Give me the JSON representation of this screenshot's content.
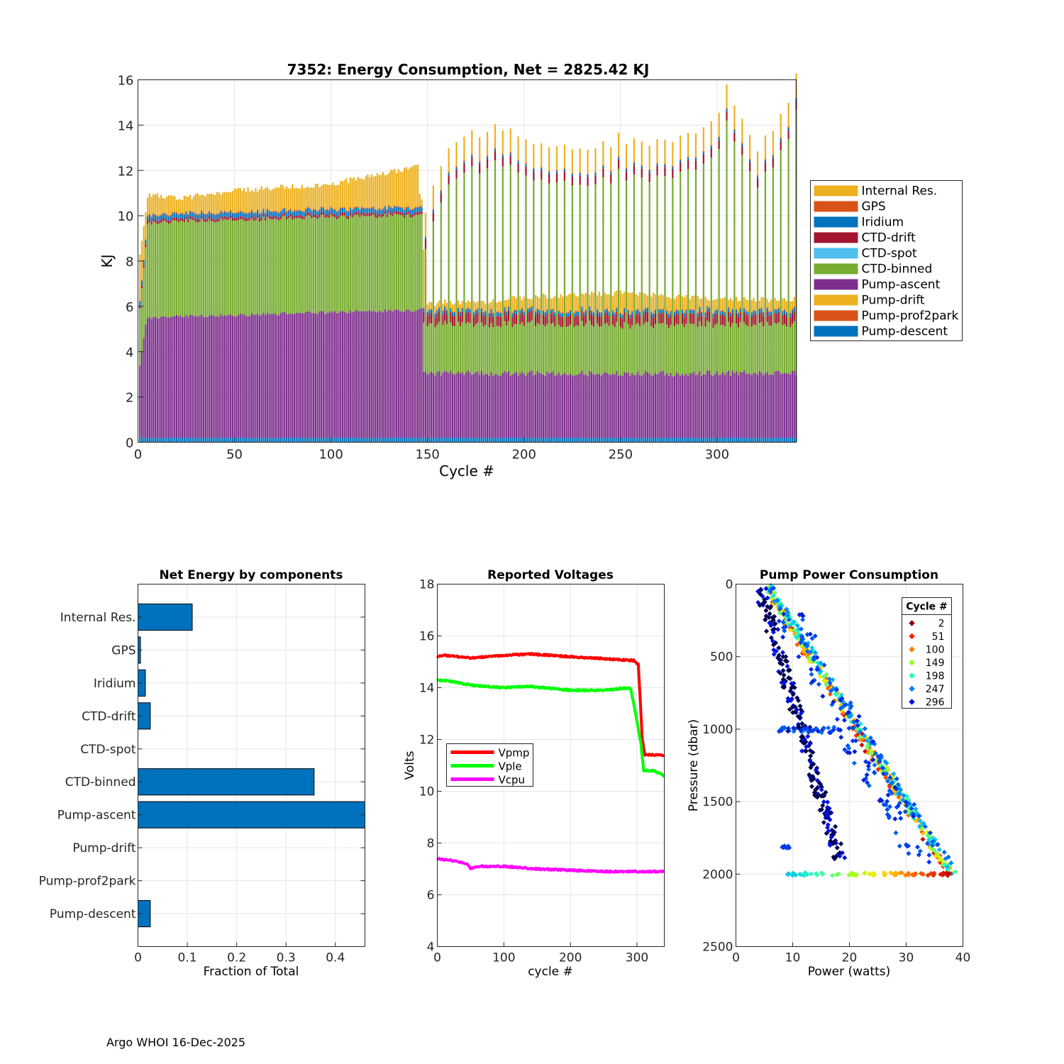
{
  "footer": "Argo WHOI 16-Dec-2025",
  "chart_data": [
    {
      "type": "bar",
      "stacked": true,
      "title": "7352: Energy Consumption,  Net = 2825.42 KJ",
      "xlabel": "Cycle #",
      "ylabel": "KJ",
      "xlim": [
        0,
        341
      ],
      "ylim": [
        0,
        16
      ],
      "xticks": [
        0,
        50,
        100,
        150,
        200,
        250,
        300
      ],
      "yticks": [
        0,
        2,
        4,
        6,
        8,
        10,
        12,
        14,
        16
      ],
      "legend_position": "right",
      "legend": [
        "Internal Res.",
        "GPS",
        "Iridium",
        "CTD-drift",
        "CTD-spot",
        "CTD-binned",
        "Pump-ascent",
        "Pump-drift",
        "Pump-prof2park",
        "Pump-descent"
      ],
      "colors": {
        "Internal Res.": "#EDB120",
        "GPS": "#D95319",
        "Iridium": "#0072BD",
        "CTD-drift": "#A2142F",
        "CTD-spot": "#4DBEEE",
        "CTD-binned": "#77AC30",
        "Pump-ascent": "#7E2F8E",
        "Pump-drift": "#EDB120",
        "Pump-prof2park": "#D95319",
        "Pump-descent": "#0072BD"
      },
      "approx_totals": [
        {
          "cycle": 1,
          "total": 8.3
        },
        {
          "cycle": 5,
          "total": 10.9
        },
        {
          "cycle": 25,
          "total": 10.8
        },
        {
          "cycle": 50,
          "total": 11.1
        },
        {
          "cycle": 100,
          "total": 11.4
        },
        {
          "cycle": 145,
          "total": 12.2
        },
        {
          "cycle": 150,
          "total": 5.9
        },
        {
          "cycle": 200,
          "total": 6.4
        },
        {
          "cycle": 250,
          "total": 6.6
        },
        {
          "cycle": 300,
          "total": 6.3
        },
        {
          "cycle": 341,
          "total": 6.3
        }
      ],
      "approx_tall_bars": [
        {
          "cycle": 149,
          "total": 10.4
        },
        {
          "cycle": 155,
          "total": 12.2
        },
        {
          "cycle": 160,
          "total": 12.6
        },
        {
          "cycle": 170,
          "total": 13.4
        },
        {
          "cycle": 180,
          "total": 13.9
        },
        {
          "cycle": 200,
          "total": 13.6
        },
        {
          "cycle": 220,
          "total": 12.9
        },
        {
          "cycle": 250,
          "total": 13.4
        },
        {
          "cycle": 280,
          "total": 13.2
        },
        {
          "cycle": 300,
          "total": 14.6
        },
        {
          "cycle": 306,
          "total": 15.7
        },
        {
          "cycle": 320,
          "total": 12.6
        },
        {
          "cycle": 335,
          "total": 14.6
        },
        {
          "cycle": 341,
          "total": 16.0
        }
      ]
    },
    {
      "type": "bar",
      "orientation": "horizontal",
      "title": "Net Energy by components",
      "xlabel": "Fraction of Total",
      "xlim": [
        0,
        0.46
      ],
      "xticks": [
        0,
        0.1,
        0.2,
        0.3,
        0.4
      ],
      "xticklabels": [
        "0",
        "0.1",
        "0.2",
        "0.3",
        "0.4"
      ],
      "categories": [
        "Internal Res.",
        "GPS",
        "Iridium",
        "CTD-drift",
        "CTD-spot",
        "CTD-binned",
        "Pump-ascent",
        "Pump-drift",
        "Pump-prof2park",
        "Pump-descent"
      ],
      "values": [
        0.11,
        0.005,
        0.015,
        0.025,
        0.0,
        0.357,
        0.465,
        0.0,
        0.0,
        0.025
      ],
      "color": "#0072BD"
    },
    {
      "type": "line",
      "title": "Reported Voltages",
      "xlabel": "cycle #",
      "ylabel": "Volts",
      "xlim": [
        0,
        341
      ],
      "ylim": [
        4,
        18
      ],
      "xticks": [
        0,
        100,
        200,
        300
      ],
      "yticks": [
        4,
        6,
        8,
        10,
        12,
        14,
        16,
        18
      ],
      "legend_position": "middle-left",
      "series": [
        {
          "name": "Vpmp",
          "color": "#FF0000",
          "points": [
            [
              0,
              15.2
            ],
            [
              10,
              15.25
            ],
            [
              50,
              15.15
            ],
            [
              100,
              15.25
            ],
            [
              140,
              15.3
            ],
            [
              200,
              15.2
            ],
            [
              260,
              15.1
            ],
            [
              295,
              15.05
            ],
            [
              302,
              14.9
            ],
            [
              308,
              12.0
            ],
            [
              312,
              11.4
            ],
            [
              341,
              11.4
            ]
          ]
        },
        {
          "name": "Vple",
          "color": "#00FF00",
          "points": [
            [
              0,
              14.3
            ],
            [
              20,
              14.25
            ],
            [
              50,
              14.1
            ],
            [
              100,
              14.0
            ],
            [
              140,
              14.05
            ],
            [
              200,
              13.9
            ],
            [
              250,
              13.9
            ],
            [
              290,
              14.0
            ],
            [
              298,
              13.0
            ],
            [
              306,
              11.8
            ],
            [
              310,
              10.8
            ],
            [
              325,
              10.8
            ],
            [
              341,
              10.6
            ]
          ]
        },
        {
          "name": "Vcpu",
          "color": "#FF00FF",
          "points": [
            [
              0,
              7.4
            ],
            [
              30,
              7.3
            ],
            [
              45,
              7.2
            ],
            [
              50,
              7.0
            ],
            [
              60,
              7.1
            ],
            [
              100,
              7.1
            ],
            [
              150,
              7.0
            ],
            [
              200,
              6.95
            ],
            [
              250,
              6.9
            ],
            [
              300,
              6.9
            ],
            [
              341,
              6.9
            ]
          ]
        }
      ]
    },
    {
      "type": "scatter",
      "title": "Pump Power Consumption",
      "xlabel": "Power (watts)",
      "ylabel": "Pressure (dbar)",
      "xlim": [
        0,
        40
      ],
      "ylim": [
        0,
        2500
      ],
      "y_reversed": true,
      "xticks": [
        0,
        10,
        20,
        30,
        40
      ],
      "yticks": [
        0,
        500,
        1000,
        1500,
        2000,
        2500
      ],
      "legend_title": "Cycle #",
      "legend_position": "top-right",
      "series": [
        {
          "name": "2",
          "color": "#8B0000"
        },
        {
          "name": "51",
          "color": "#FF2000"
        },
        {
          "name": "100",
          "color": "#FF8000"
        },
        {
          "name": "149",
          "color": "#90FF20"
        },
        {
          "name": "198",
          "color": "#20FFB0"
        },
        {
          "name": "247",
          "color": "#0080FF"
        },
        {
          "name": "296",
          "color": "#0010E0"
        }
      ]
    }
  ]
}
